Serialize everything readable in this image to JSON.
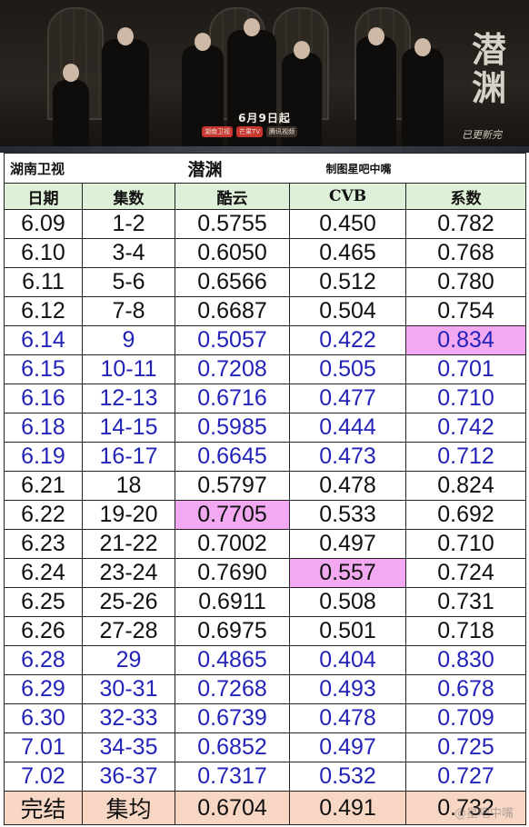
{
  "poster": {
    "big_title": "潜渊",
    "subtitle": "已更新完",
    "air_date": "6月9日起",
    "sponsors": [
      "湖南卫视",
      "芒果TV",
      "腾讯视频"
    ]
  },
  "table": {
    "title_left": "湖南卫视",
    "title_center": "潜渊",
    "title_right": "制图星吧中嘴",
    "headers": [
      "日期",
      "集数",
      "酷云",
      "CVB",
      "系数"
    ],
    "rows": [
      {
        "date": "6.09",
        "ep": "1-2",
        "kuyun": "0.5755",
        "cvb": "0.450",
        "coef": "0.782",
        "style": "black"
      },
      {
        "date": "6.10",
        "ep": "3-4",
        "kuyun": "0.6050",
        "cvb": "0.465",
        "coef": "0.768",
        "style": "black"
      },
      {
        "date": "6.11",
        "ep": "5-6",
        "kuyun": "0.6566",
        "cvb": "0.512",
        "coef": "0.780",
        "style": "black"
      },
      {
        "date": "6.12",
        "ep": "7-8",
        "kuyun": "0.6687",
        "cvb": "0.504",
        "coef": "0.754",
        "style": "black"
      },
      {
        "date": "6.14",
        "ep": "9",
        "kuyun": "0.5057",
        "cvb": "0.422",
        "coef": "0.834",
        "style": "blue",
        "hl": "coef"
      },
      {
        "date": "6.15",
        "ep": "10-11",
        "kuyun": "0.7208",
        "cvb": "0.505",
        "coef": "0.701",
        "style": "blue"
      },
      {
        "date": "6.16",
        "ep": "12-13",
        "kuyun": "0.6716",
        "cvb": "0.477",
        "coef": "0.710",
        "style": "blue"
      },
      {
        "date": "6.18",
        "ep": "14-15",
        "kuyun": "0.5985",
        "cvb": "0.444",
        "coef": "0.742",
        "style": "blue"
      },
      {
        "date": "6.19",
        "ep": "16-17",
        "kuyun": "0.6645",
        "cvb": "0.473",
        "coef": "0.712",
        "style": "blue"
      },
      {
        "date": "6.21",
        "ep": "18",
        "kuyun": "0.5797",
        "cvb": "0.478",
        "coef": "0.824",
        "style": "black"
      },
      {
        "date": "6.22",
        "ep": "19-20",
        "kuyun": "0.7705",
        "cvb": "0.533",
        "coef": "0.692",
        "style": "black",
        "hl": "kuyun"
      },
      {
        "date": "6.23",
        "ep": "21-22",
        "kuyun": "0.7002",
        "cvb": "0.497",
        "coef": "0.710",
        "style": "black"
      },
      {
        "date": "6.24",
        "ep": "23-24",
        "kuyun": "0.7690",
        "cvb": "0.557",
        "coef": "0.724",
        "style": "black",
        "hl": "cvb"
      },
      {
        "date": "6.25",
        "ep": "25-26",
        "kuyun": "0.6911",
        "cvb": "0.508",
        "coef": "0.731",
        "style": "black"
      },
      {
        "date": "6.26",
        "ep": "27-28",
        "kuyun": "0.6975",
        "cvb": "0.501",
        "coef": "0.718",
        "style": "black"
      },
      {
        "date": "6.28",
        "ep": "29",
        "kuyun": "0.4865",
        "cvb": "0.404",
        "coef": "0.830",
        "style": "blue"
      },
      {
        "date": "6.29",
        "ep": "30-31",
        "kuyun": "0.7268",
        "cvb": "0.493",
        "coef": "0.678",
        "style": "blue"
      },
      {
        "date": "6.30",
        "ep": "32-33",
        "kuyun": "0.6739",
        "cvb": "0.478",
        "coef": "0.709",
        "style": "blue"
      },
      {
        "date": "7.01",
        "ep": "34-35",
        "kuyun": "0.6852",
        "cvb": "0.497",
        "coef": "0.725",
        "style": "blue"
      },
      {
        "date": "7.02",
        "ep": "36-37",
        "kuyun": "0.7317",
        "cvb": "0.532",
        "coef": "0.727",
        "style": "blue"
      }
    ],
    "summary": {
      "date": "完结",
      "ep": "集均",
      "kuyun": "0.6704",
      "cvb": "0.491",
      "coef": "0.732"
    }
  },
  "watermark": "@星吧中嘴"
}
